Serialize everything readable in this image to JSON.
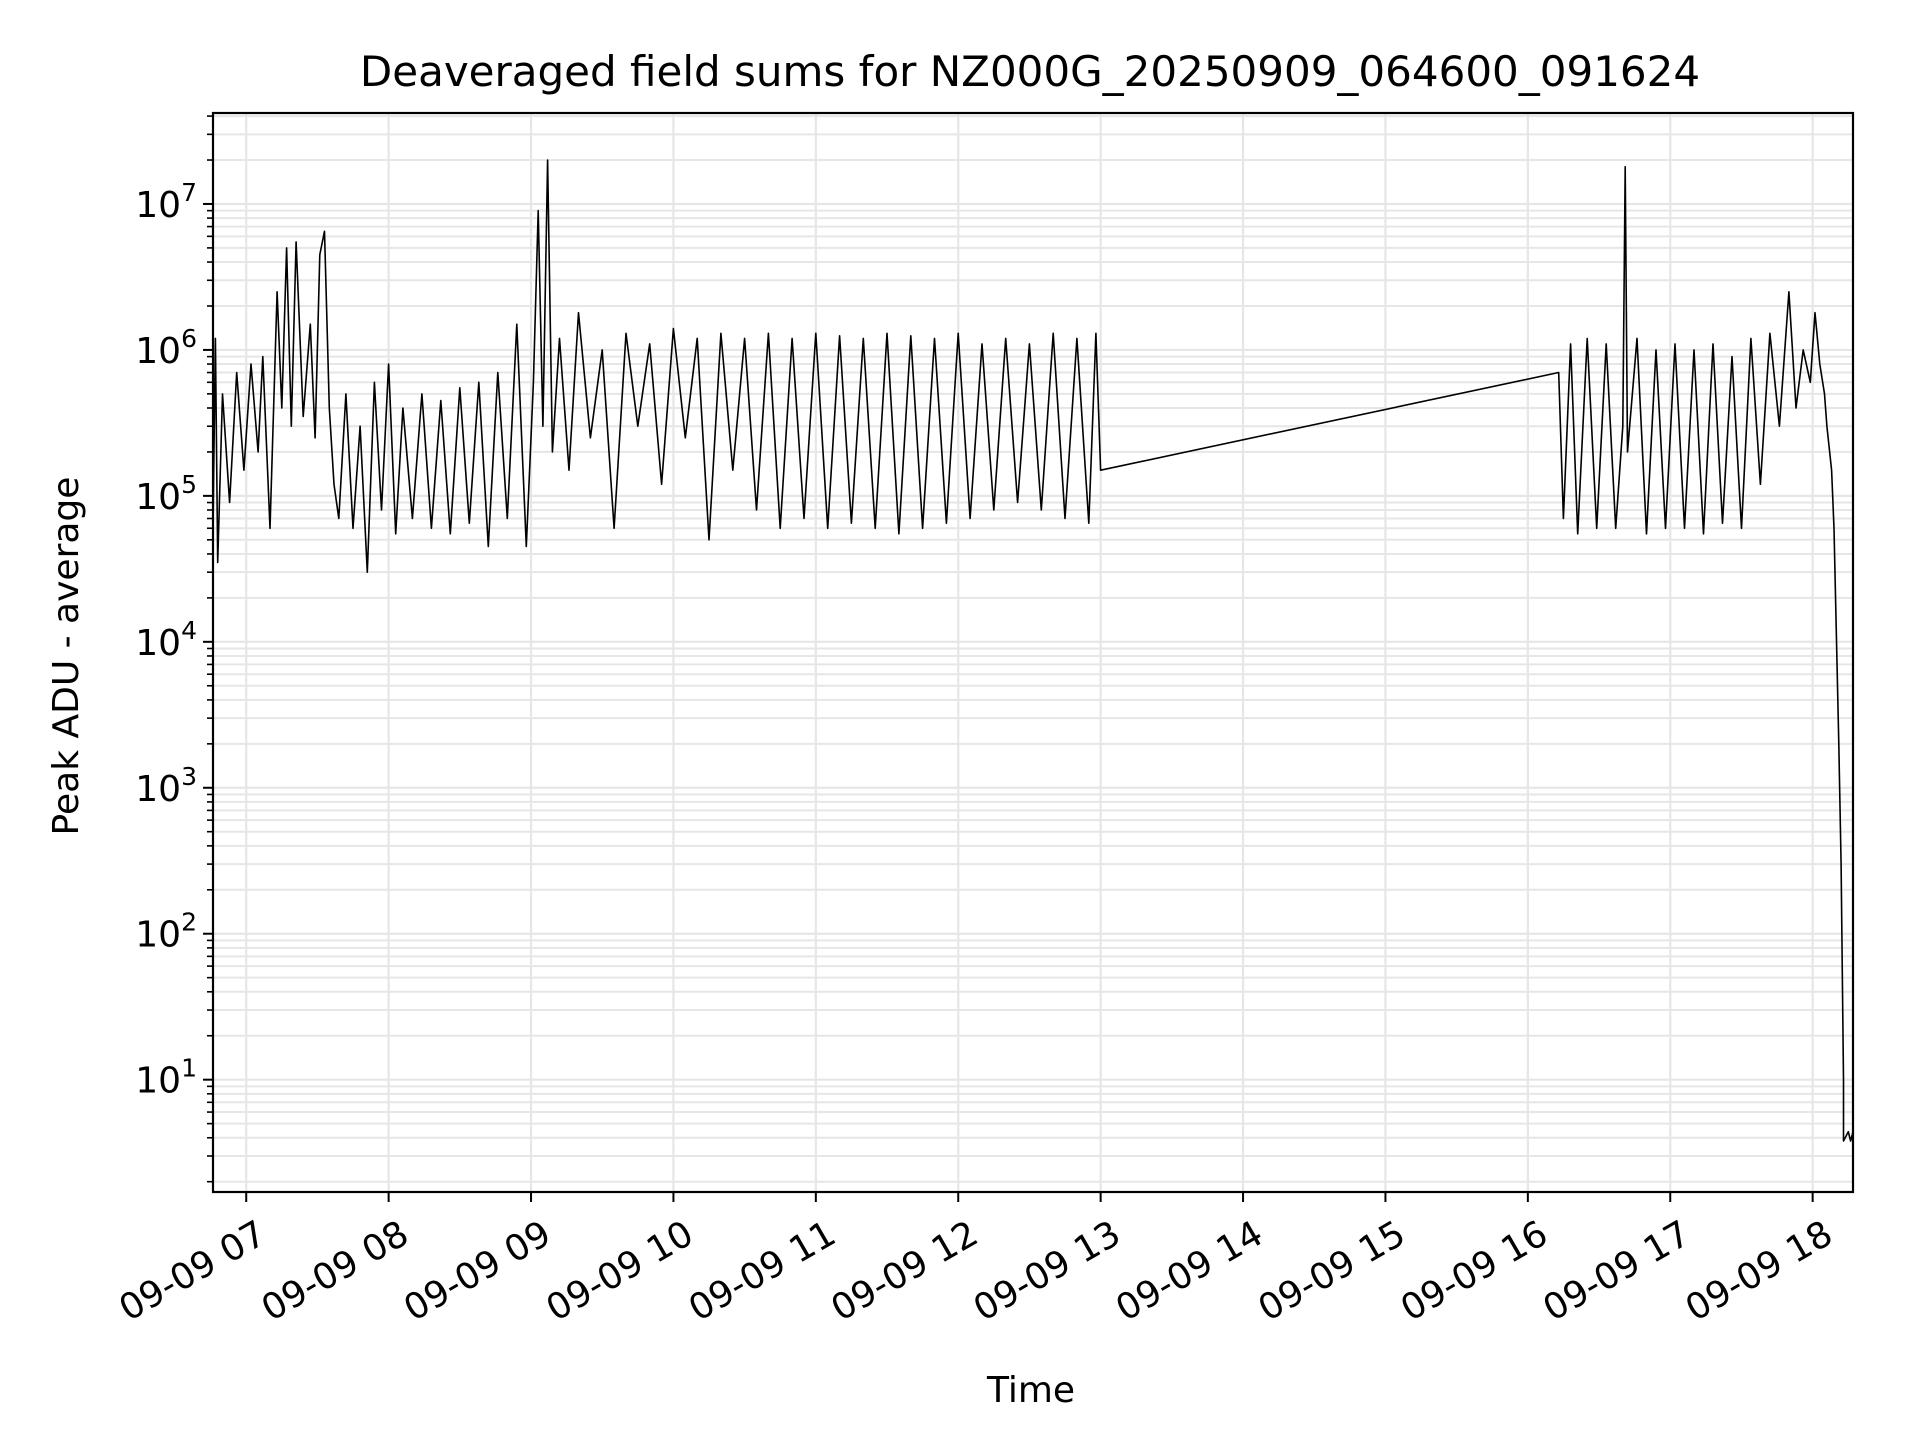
{
  "chart_data": {
    "type": "line",
    "title": "Deaveraged field sums for NZ000G_20250909_064600_091624",
    "xlabel": "Time",
    "ylabel": "Peak ADU - average",
    "y_scale": "log",
    "ylim": [
      1.7,
      42000000
    ],
    "xlim": [
      "09-09 06:46",
      "09-09 18:17"
    ],
    "x_ticks": [
      "09-09 07",
      "09-09 08",
      "09-09 09",
      "09-09 10",
      "09-09 11",
      "09-09 12",
      "09-09 13",
      "09-09 14",
      "09-09 15",
      "09-09 16",
      "09-09 17",
      "09-09 18"
    ],
    "y_ticks": [
      {
        "base": "10",
        "exp": "1",
        "value": 10
      },
      {
        "base": "10",
        "exp": "2",
        "value": 100
      },
      {
        "base": "10",
        "exp": "3",
        "value": 1000
      },
      {
        "base": "10",
        "exp": "4",
        "value": 10000
      },
      {
        "base": "10",
        "exp": "5",
        "value": 100000
      },
      {
        "base": "10",
        "exp": "6",
        "value": 1000000
      },
      {
        "base": "10",
        "exp": "7",
        "value": 10000000
      }
    ],
    "grid": true,
    "line_color": "#000000",
    "grid_color": "#e6e6e6",
    "series": [
      {
        "points": [
          [
            "09-09 06:46",
            60000
          ],
          [
            "09-09 06:47",
            1200000
          ],
          [
            "09-09 06:48",
            35000
          ],
          [
            "09-09 06:50",
            500000
          ],
          [
            "09-09 06:53",
            90000
          ],
          [
            "09-09 06:56",
            700000
          ],
          [
            "09-09 06:59",
            150000
          ],
          [
            "09-09 07:02",
            800000
          ],
          [
            "09-09 07:05",
            200000
          ],
          [
            "09-09 07:07",
            900000
          ],
          [
            "09-09 07:10",
            60000
          ],
          [
            "09-09 07:13",
            2500000
          ],
          [
            "09-09 07:15",
            400000
          ],
          [
            "09-09 07:17",
            5000000
          ],
          [
            "09-09 07:19",
            300000
          ],
          [
            "09-09 07:21",
            5500000
          ],
          [
            "09-09 07:24",
            350000
          ],
          [
            "09-09 07:27",
            1500000
          ],
          [
            "09-09 07:29",
            250000
          ],
          [
            "09-09 07:31",
            4500000
          ],
          [
            "09-09 07:33",
            6500000
          ],
          [
            "09-09 07:35",
            400000
          ],
          [
            "09-09 07:37",
            120000
          ],
          [
            "09-09 07:39",
            70000
          ],
          [
            "09-09 07:42",
            500000
          ],
          [
            "09-09 07:45",
            60000
          ],
          [
            "09-09 07:48",
            300000
          ],
          [
            "09-09 07:51",
            30000
          ],
          [
            "09-09 07:54",
            600000
          ],
          [
            "09-09 07:57",
            80000
          ],
          [
            "09-09 08:00",
            800000
          ],
          [
            "09-09 08:03",
            55000
          ],
          [
            "09-09 08:06",
            400000
          ],
          [
            "09-09 08:10",
            70000
          ],
          [
            "09-09 08:14",
            500000
          ],
          [
            "09-09 08:18",
            60000
          ],
          [
            "09-09 08:22",
            450000
          ],
          [
            "09-09 08:26",
            55000
          ],
          [
            "09-09 08:30",
            550000
          ],
          [
            "09-09 08:34",
            65000
          ],
          [
            "09-09 08:38",
            600000
          ],
          [
            "09-09 08:42",
            45000
          ],
          [
            "09-09 08:46",
            700000
          ],
          [
            "09-09 08:50",
            70000
          ],
          [
            "09-09 08:54",
            1500000
          ],
          [
            "09-09 08:58",
            45000
          ],
          [
            "09-09 09:01",
            600000
          ],
          [
            "09-09 09:03",
            9000000
          ],
          [
            "09-09 09:05",
            300000
          ],
          [
            "09-09 09:07",
            20000000
          ],
          [
            "09-09 09:09",
            200000
          ],
          [
            "09-09 09:12",
            1200000
          ],
          [
            "09-09 09:16",
            150000
          ],
          [
            "09-09 09:20",
            1800000
          ],
          [
            "09-09 09:25",
            250000
          ],
          [
            "09-09 09:30",
            1000000
          ],
          [
            "09-09 09:35",
            60000
          ],
          [
            "09-09 09:40",
            1300000
          ],
          [
            "09-09 09:45",
            300000
          ],
          [
            "09-09 09:50",
            1100000
          ],
          [
            "09-09 09:55",
            120000
          ],
          [
            "09-09 10:00",
            1400000
          ],
          [
            "09-09 10:05",
            250000
          ],
          [
            "09-09 10:10",
            1200000
          ],
          [
            "09-09 10:15",
            50000
          ],
          [
            "09-09 10:20",
            1300000
          ],
          [
            "09-09 10:25",
            150000
          ],
          [
            "09-09 10:30",
            1200000
          ],
          [
            "09-09 10:35",
            80000
          ],
          [
            "09-09 10:40",
            1300000
          ],
          [
            "09-09 10:45",
            60000
          ],
          [
            "09-09 10:50",
            1200000
          ],
          [
            "09-09 10:55",
            70000
          ],
          [
            "09-09 11:00",
            1300000
          ],
          [
            "09-09 11:05",
            60000
          ],
          [
            "09-09 11:10",
            1250000
          ],
          [
            "09-09 11:15",
            65000
          ],
          [
            "09-09 11:20",
            1200000
          ],
          [
            "09-09 11:25",
            60000
          ],
          [
            "09-09 11:30",
            1300000
          ],
          [
            "09-09 11:35",
            55000
          ],
          [
            "09-09 11:40",
            1250000
          ],
          [
            "09-09 11:45",
            60000
          ],
          [
            "09-09 11:50",
            1200000
          ],
          [
            "09-09 11:55",
            65000
          ],
          [
            "09-09 12:00",
            1300000
          ],
          [
            "09-09 12:05",
            70000
          ],
          [
            "09-09 12:10",
            1100000
          ],
          [
            "09-09 12:15",
            80000
          ],
          [
            "09-09 12:20",
            1200000
          ],
          [
            "09-09 12:25",
            90000
          ],
          [
            "09-09 12:30",
            1100000
          ],
          [
            "09-09 12:35",
            80000
          ],
          [
            "09-09 12:40",
            1300000
          ],
          [
            "09-09 12:45",
            70000
          ],
          [
            "09-09 12:50",
            1200000
          ],
          [
            "09-09 12:55",
            65000
          ],
          [
            "09-09 12:58",
            1300000
          ],
          [
            "09-09 13:00",
            150000
          ],
          [
            "09-09 16:13",
            700000
          ],
          [
            "09-09 16:15",
            70000
          ],
          [
            "09-09 16:18",
            1100000
          ],
          [
            "09-09 16:21",
            55000
          ],
          [
            "09-09 16:25",
            1200000
          ],
          [
            "09-09 16:29",
            60000
          ],
          [
            "09-09 16:33",
            1100000
          ],
          [
            "09-09 16:37",
            60000
          ],
          [
            "09-09 16:40",
            300000
          ],
          [
            "09-09 16:41",
            18000000
          ],
          [
            "09-09 16:42",
            200000
          ],
          [
            "09-09 16:46",
            1200000
          ],
          [
            "09-09 16:50",
            55000
          ],
          [
            "09-09 16:54",
            1000000
          ],
          [
            "09-09 16:58",
            60000
          ],
          [
            "09-09 17:02",
            1100000
          ],
          [
            "09-09 17:06",
            60000
          ],
          [
            "09-09 17:10",
            1000000
          ],
          [
            "09-09 17:14",
            55000
          ],
          [
            "09-09 17:18",
            1100000
          ],
          [
            "09-09 17:22",
            65000
          ],
          [
            "09-09 17:26",
            900000
          ],
          [
            "09-09 17:30",
            60000
          ],
          [
            "09-09 17:34",
            1200000
          ],
          [
            "09-09 17:38",
            120000
          ],
          [
            "09-09 17:42",
            1300000
          ],
          [
            "09-09 17:46",
            300000
          ],
          [
            "09-09 17:50",
            2500000
          ],
          [
            "09-09 17:53",
            400000
          ],
          [
            "09-09 17:56",
            1000000
          ],
          [
            "09-09 17:59",
            600000
          ],
          [
            "09-09 18:01",
            1800000
          ],
          [
            "09-09 18:03",
            800000
          ],
          [
            "09-09 18:05",
            500000
          ],
          [
            "09-09 18:06",
            300000
          ],
          [
            "09-09 18:08",
            150000
          ],
          [
            "09-09 18:09",
            60000
          ],
          [
            "09-09 18:11",
            2000
          ],
          [
            "09-09 18:12",
            300
          ],
          [
            "09-09 18:13",
            10
          ],
          [
            "09-09 18:13",
            3.8
          ],
          [
            "09-09 18:15",
            4.4
          ],
          [
            "09-09 18:16",
            3.8
          ],
          [
            "09-09 18:17",
            4.4
          ],
          [
            "09-09 18:17",
            3.8
          ]
        ]
      }
    ]
  }
}
